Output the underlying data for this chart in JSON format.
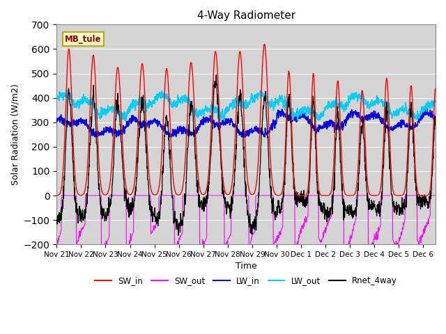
{
  "title": "4-Way Radiometer",
  "xlabel": "Time",
  "ylabel": "Solar Radiation (W/m2)",
  "ylim": [
    -200,
    700
  ],
  "yticks": [
    -200,
    -100,
    0,
    100,
    200,
    300,
    400,
    500,
    600,
    700
  ],
  "station_label": "MB_tule",
  "colors": {
    "SW_in": "#ff0000",
    "SW_out": "#ff00ff",
    "LW_in": "#0000dd",
    "LW_out": "#00ccff",
    "Rnet_4way": "#000000"
  },
  "axes_facecolor": "#d4d4d4",
  "grid_color": "#ffffff",
  "nov_days": [
    21,
    22,
    23,
    24,
    25,
    26,
    27,
    28,
    29,
    30
  ],
  "dec_days": [
    1,
    2,
    3,
    4,
    5,
    6
  ],
  "sw_in_peaks": [
    600,
    575,
    525,
    540,
    520,
    545,
    590,
    590,
    620,
    510,
    500,
    470,
    430,
    480,
    450,
    440
  ],
  "sw_in_widths": [
    3.0,
    3.2,
    3.5,
    3.5,
    3.2,
    3.5,
    3.5,
    3.5,
    3.5,
    2.5,
    2.2,
    2.5,
    2.5,
    2.5,
    2.5,
    2.2
  ],
  "lw_in_base": 280,
  "lw_out_base": 360
}
